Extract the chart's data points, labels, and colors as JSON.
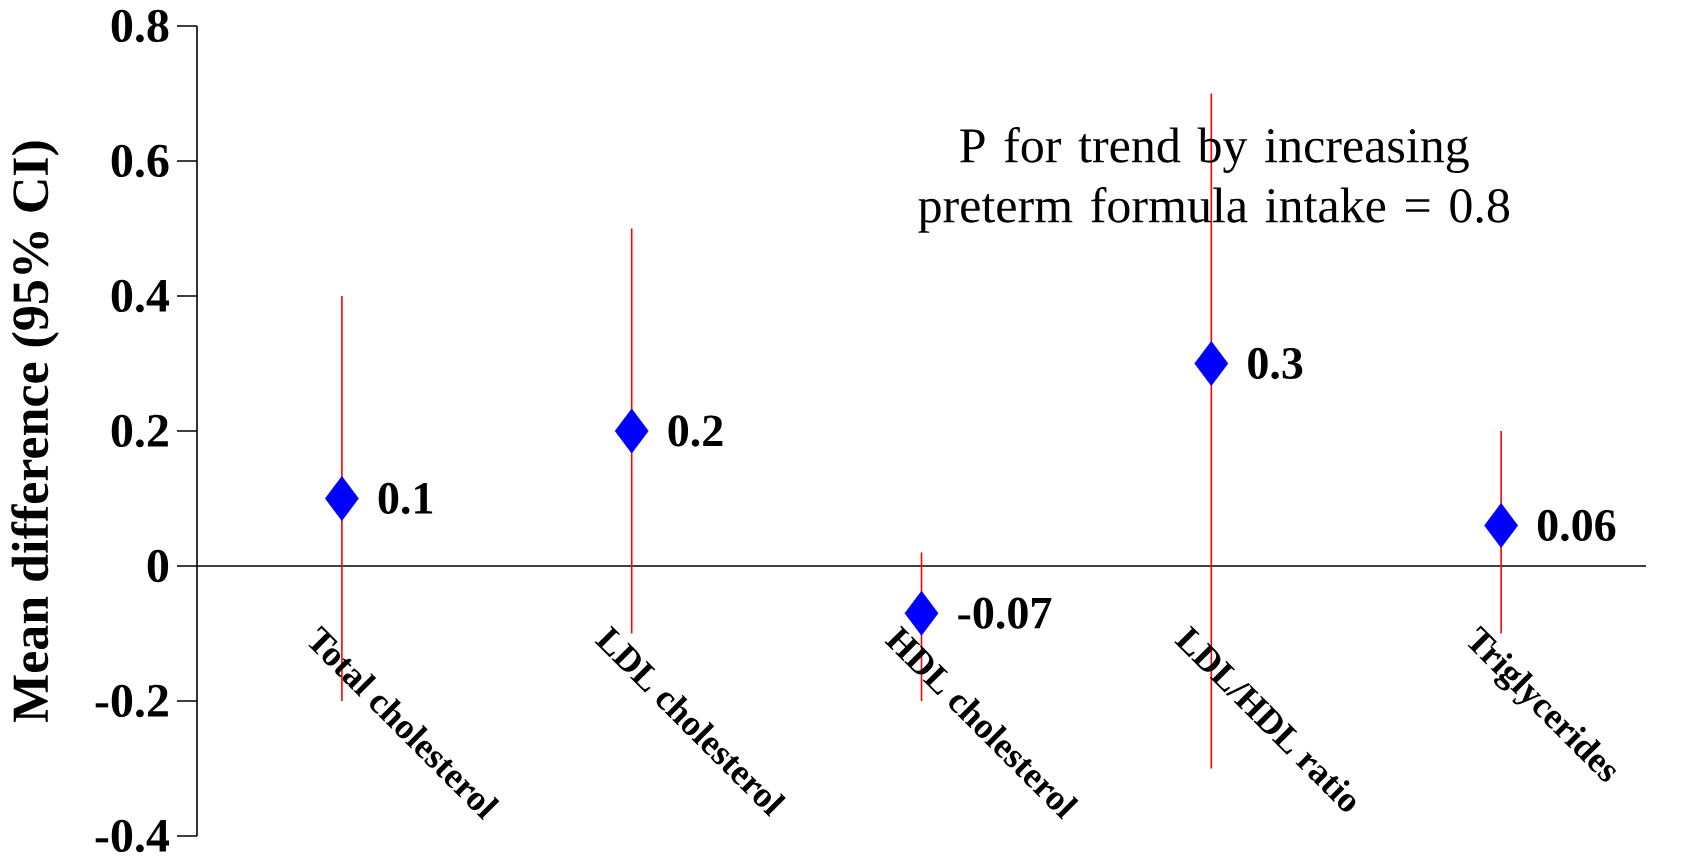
{
  "chart_data": {
    "type": "scatter",
    "ylabel": "Mean difference (95% CI)",
    "categories": [
      "Total cholesterol",
      "LDL cholesterol",
      "HDL cholesterol",
      "LDL/HDL ratio",
      "Triglycerides"
    ],
    "series": [
      {
        "color": "#0000ff",
        "values": [
          0.1,
          0.2,
          -0.07,
          0.3,
          0.06
        ],
        "errors": [
          [
            -0.2,
            0.4
          ],
          [
            -0.1,
            0.5
          ],
          [
            -0.2,
            0.02
          ],
          [
            -0.3,
            0.7
          ],
          [
            -0.1,
            0.2
          ]
        ]
      }
    ],
    "ylim": [
      -0.4,
      0.8
    ],
    "yticks": [
      -0.4,
      -0.2,
      0,
      0.2,
      0.4,
      0.6,
      0.8
    ],
    "data_labels": true,
    "marker": "diamond",
    "grid": false,
    "annotations": [
      "P for trend by increasing preterm formula intake = 0.8"
    ]
  }
}
